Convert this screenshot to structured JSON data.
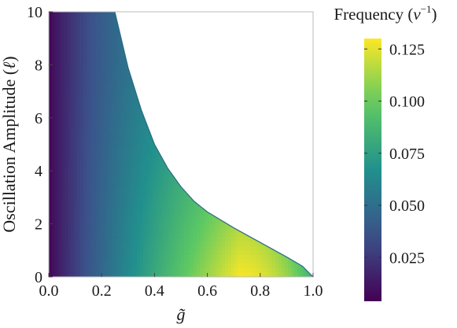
{
  "chart_data": {
    "type": "heatmap",
    "title": "",
    "xlabel": "g̃",
    "ylabel_parts": {
      "before": "Oscillation Amplitude (",
      "italic": "ℓ",
      "after": ")"
    },
    "xlim": [
      0.0,
      1.0
    ],
    "ylim": [
      0,
      10
    ],
    "x_ticks": [
      "0.0",
      "0.2",
      "0.4",
      "0.6",
      "0.8",
      "1.0"
    ],
    "y_ticks": [
      "0",
      "2",
      "4",
      "6",
      "8",
      "10"
    ],
    "grid": false,
    "colorbar": {
      "label_parts": {
        "before": "Frequency (",
        "italic": "ν",
        "sup": "−1",
        "after": ")"
      },
      "range": [
        0.004,
        0.13
      ],
      "ticks": [
        "0.025",
        "0.050",
        "0.075",
        "0.100",
        "0.125"
      ],
      "colormap": "viridis"
    },
    "domain_boundary": [
      {
        "g": 0.25,
        "amplitude": 10.0
      },
      {
        "g": 0.3,
        "amplitude": 7.9
      },
      {
        "g": 0.35,
        "amplitude": 6.3
      },
      {
        "g": 0.4,
        "amplitude": 5.0
      },
      {
        "g": 0.45,
        "amplitude": 4.1
      },
      {
        "g": 0.5,
        "amplitude": 3.4
      },
      {
        "g": 0.55,
        "amplitude": 2.85
      },
      {
        "g": 0.6,
        "amplitude": 2.45
      },
      {
        "g": 0.7,
        "amplitude": 1.85
      },
      {
        "g": 0.8,
        "amplitude": 1.3
      },
      {
        "g": 0.9,
        "amplitude": 0.75
      },
      {
        "g": 0.96,
        "amplitude": 0.4
      },
      {
        "g": 1.0,
        "amplitude": 0.0
      }
    ],
    "peak": {
      "g": 0.72,
      "amplitude": 0.2,
      "frequency": 0.128
    }
  },
  "colors": {
    "viridis": [
      "#440154",
      "#3b528b",
      "#21908d",
      "#5dc963",
      "#fde725"
    ],
    "axis": "#444444",
    "frame": "#bbbbbb"
  }
}
